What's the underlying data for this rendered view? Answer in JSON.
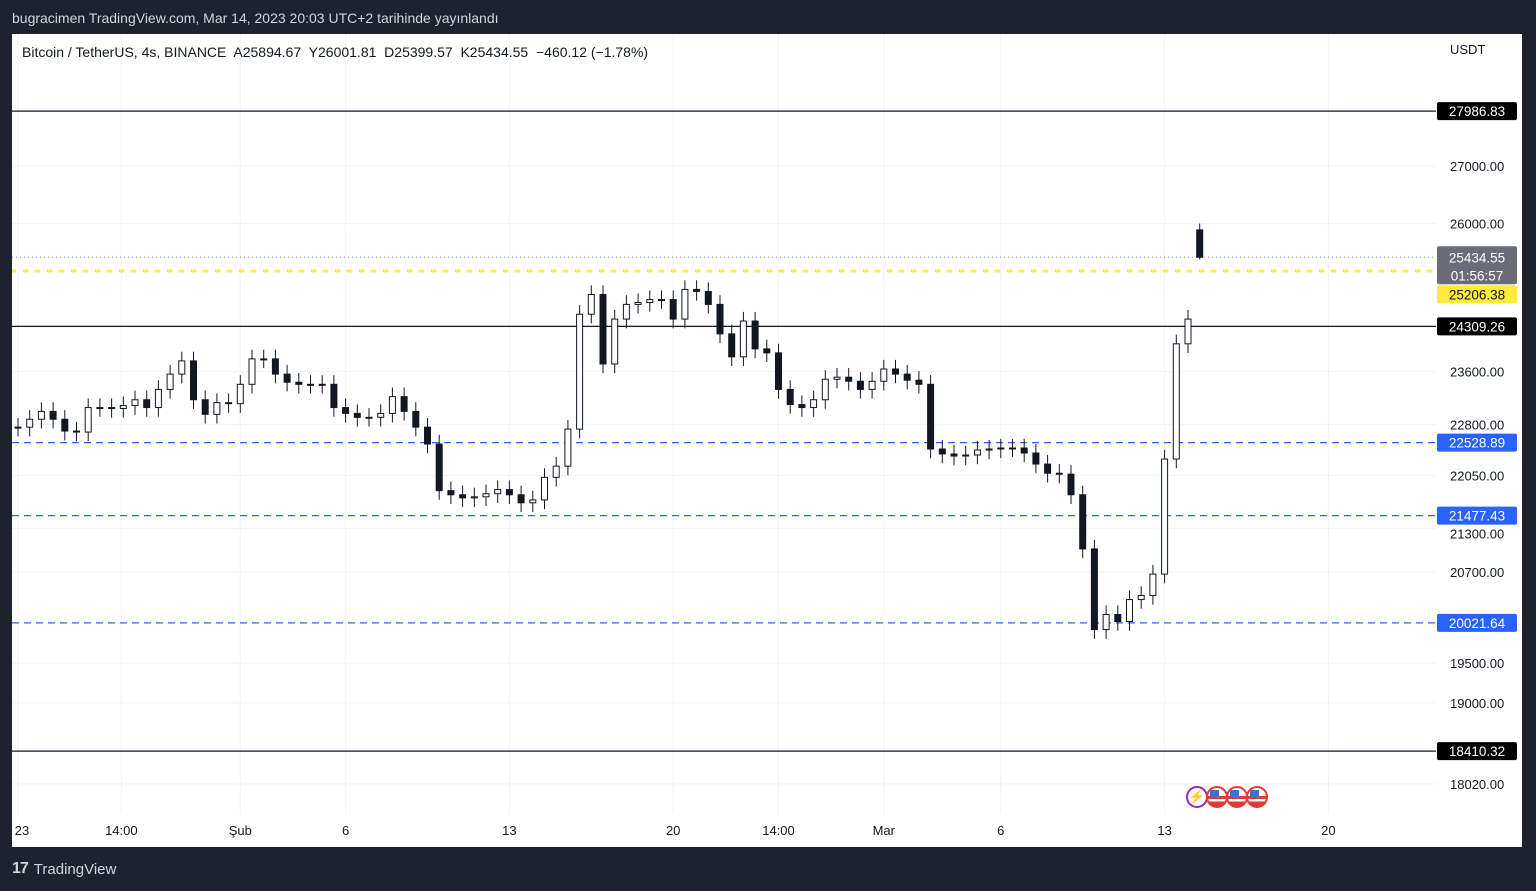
{
  "header": {
    "published": "bugracimen TradingView.com, Mar 14, 2023 20:03 UTC+2 tarihinde yayınlandı"
  },
  "legend": {
    "symbol": "Bitcoin / TetherUS, 4s, BINANCE",
    "open": "A25894.67",
    "high": "Y26001.81",
    "low": "D25399.57",
    "close": "K25434.55",
    "change": "−460.12 (−1.78%)"
  },
  "footer": {
    "brand": "TradingView"
  },
  "colors": {
    "up": "#131722",
    "down": "#131722",
    "support": "#2962ff",
    "yellow": "#ffeb3b",
    "background": "#1e222d"
  },
  "chart_data": {
    "type": "candlestick",
    "yscale": "log",
    "ylim": [
      17900,
      28600
    ],
    "unit": "USDT",
    "grid": true,
    "x_start": "2023-01-23T00:00Z",
    "interval_hours": 12,
    "closes": [
      22758,
      22876,
      22994,
      22876,
      22700,
      22685,
      23052,
      23052,
      23038,
      23082,
      23170,
      23052,
      23327,
      23562,
      23767,
      23170,
      22950,
      23126,
      23111,
      23405,
      23798,
      23798,
      23562,
      23437,
      23405,
      23405,
      23405,
      23052,
      22964,
      22905,
      22905,
      22964,
      23217,
      22994,
      22758,
      22508,
      21832,
      21773,
      21729,
      21744,
      21788,
      21847,
      21773,
      21659,
      21700,
      22023,
      22185,
      22729,
      24504,
      24823,
      23719,
      24426,
      24662,
      24693,
      24740,
      24740,
      24426,
      24905,
      24872,
      24662,
      24191,
      23830,
      24395,
      23955,
      23892,
      23327,
      23097,
      23052,
      23170,
      23484,
      23515,
      23452,
      23327,
      23452,
      23641,
      23562,
      23468,
      23405,
      22435,
      22362,
      22332,
      22347,
      22420,
      22435,
      22450,
      22450,
      22376,
      22215,
      22082,
      22068,
      21773,
      21015,
      19934,
      20132,
      20040,
      20330,
      20385,
      20672,
      22288,
      24034,
      24426,
      25434.55
    ],
    "last_candle": {
      "open": 25894.67,
      "high": 26001.81,
      "low": 25399.57,
      "close": 25434.55
    },
    "y_ticks": [
      "27000.00",
      "26000.00",
      "23600.00",
      "22800.00",
      "22050.00",
      "21300.00",
      "20700.00",
      "19500.00",
      "19000.00",
      "18020.00"
    ],
    "x_ticks": [
      {
        "label": "23",
        "t": "2023-01-23T00:00Z"
      },
      {
        "label": "14:00",
        "t": "2023-01-27T10:00Z"
      },
      {
        "label": "Şub",
        "t": "2023-02-01T12:00Z"
      },
      {
        "label": "6",
        "t": "2023-02-06T00:00Z"
      },
      {
        "label": "13",
        "t": "2023-02-13T00:00Z"
      },
      {
        "label": "20",
        "t": "2023-02-20T00:00Z"
      },
      {
        "label": "14:00",
        "t": "2023-02-24T12:00Z"
      },
      {
        "label": "Mar",
        "t": "2023-03-01T00:00Z"
      },
      {
        "label": "6",
        "t": "2023-03-06T00:00Z"
      },
      {
        "label": "13",
        "t": "2023-03-13T00:00Z"
      },
      {
        "label": "20",
        "t": "2023-03-20T00:00Z"
      }
    ],
    "levels": [
      {
        "value": 27986.83,
        "label": "27986.83",
        "style": "solid",
        "color": "#131722"
      },
      {
        "value": 24309.26,
        "label": "24309.26",
        "style": "solid",
        "color": "#131722"
      },
      {
        "value": 18410.32,
        "label": "18410.32",
        "style": "solid",
        "color": "#131722"
      },
      {
        "value": 25206.38,
        "label": "25206.38",
        "style": "dotted",
        "color": "#ffeb3b"
      },
      {
        "value": 22528.89,
        "label": "22528.89",
        "style": "dashed",
        "color": "#2962ff"
      },
      {
        "value": 21477.43,
        "label": "21477.43",
        "style": "dashed",
        "color": "#2962ff"
      },
      {
        "value": 20021.64,
        "label": "20021.64",
        "style": "dashed",
        "color": "#2962ff"
      }
    ],
    "last_price": {
      "value": 25434.55,
      "label": "25434.55",
      "countdown": "01:56:57"
    }
  }
}
